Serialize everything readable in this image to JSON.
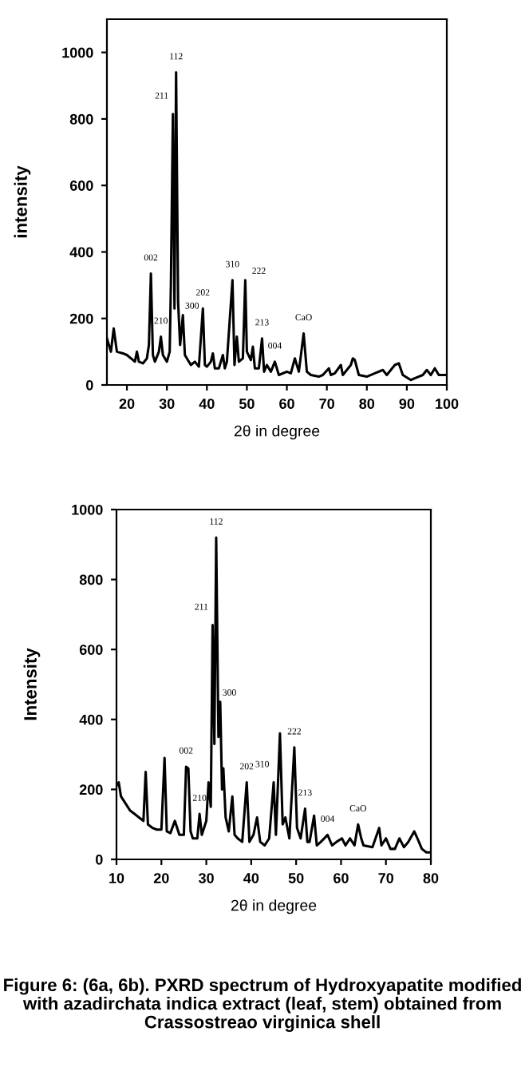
{
  "chart_data": [
    {
      "type": "line",
      "xlabel": "2θ in degree",
      "ylabel": "intensity",
      "xlim": [
        15,
        100
      ],
      "ylim": [
        0,
        1100
      ],
      "xticks": [
        20,
        30,
        40,
        50,
        60,
        70,
        80,
        90,
        100
      ],
      "yticks": [
        0,
        200,
        400,
        600,
        800,
        1000
      ],
      "grid": false,
      "legend": false,
      "marker": "none",
      "line_style": "solid",
      "series": [
        {
          "color": "#000000",
          "x": [
            15,
            16,
            16.7,
            17.5,
            19,
            20,
            21,
            22,
            22.5,
            23,
            24,
            25,
            25.5,
            26,
            26.5,
            27,
            28,
            28.5,
            29,
            30,
            30.7,
            31,
            31.5,
            31.9,
            32.3,
            32.8,
            33.3,
            34,
            34.5,
            35,
            36,
            37,
            38,
            39,
            39.5,
            40,
            41,
            41.5,
            42,
            43,
            44,
            44.5,
            45,
            46.4,
            46.9,
            47.5,
            48,
            49,
            49.6,
            50,
            51,
            51.5,
            52,
            53,
            53.8,
            54.3,
            55,
            56,
            57,
            58,
            60,
            61,
            62,
            63,
            64.2,
            65,
            66,
            68,
            69,
            70.5,
            71,
            72,
            73.5,
            74,
            75,
            76,
            76.5,
            77,
            78,
            80,
            82,
            84,
            85,
            87,
            88,
            89,
            91,
            92,
            94,
            95,
            96,
            97,
            98,
            100
          ],
          "values": [
            140,
            100,
            170,
            100,
            95,
            90,
            80,
            70,
            100,
            70,
            65,
            80,
            120,
            335,
            90,
            70,
            100,
            145,
            90,
            70,
            100,
            300,
            815,
            230,
            940,
            250,
            120,
            210,
            90,
            80,
            60,
            70,
            55,
            230,
            60,
            55,
            70,
            95,
            50,
            50,
            90,
            50,
            70,
            315,
            60,
            145,
            70,
            80,
            315,
            100,
            75,
            115,
            50,
            50,
            140,
            40,
            60,
            40,
            70,
            30,
            40,
            35,
            80,
            40,
            155,
            40,
            30,
            25,
            30,
            50,
            30,
            35,
            60,
            30,
            45,
            60,
            80,
            75,
            30,
            25,
            35,
            45,
            30,
            60,
            65,
            30,
            15,
            20,
            30,
            45,
            30,
            50,
            30,
            30
          ]
        }
      ],
      "annotations": [
        {
          "text": "002",
          "x": 26,
          "y": 335
        },
        {
          "text": "210",
          "x": 28.5,
          "y": 145
        },
        {
          "text": "211",
          "x": 31.5,
          "y": 815
        },
        {
          "text": "112",
          "x": 32.3,
          "y": 940
        },
        {
          "text": "300",
          "x": 34,
          "y": 210
        },
        {
          "text": "202",
          "x": 39,
          "y": 230
        },
        {
          "text": "310",
          "x": 46.4,
          "y": 315
        },
        {
          "text": "222",
          "x": 49.6,
          "y": 315
        },
        {
          "text": "213",
          "x": 53.8,
          "y": 140
        },
        {
          "text": "004",
          "x": 57,
          "y": 70
        },
        {
          "text": "CaO",
          "x": 64.2,
          "y": 155
        }
      ]
    },
    {
      "type": "line",
      "xlabel": "2θ in degree",
      "ylabel": "Intensity",
      "xlim": [
        10,
        80
      ],
      "ylim": [
        0,
        1000
      ],
      "xticks": [
        10,
        20,
        30,
        40,
        50,
        60,
        70,
        80
      ],
      "yticks": [
        0,
        200,
        400,
        600,
        800,
        1000
      ],
      "grid": false,
      "legend": false,
      "marker": "none",
      "line_style": "solid",
      "series": [
        {
          "color": "#000000",
          "x": [
            10,
            10.5,
            11,
            12,
            13,
            14,
            15,
            16,
            16.5,
            17,
            18,
            19,
            20,
            20.7,
            21.2,
            22,
            23,
            24,
            25,
            25.5,
            26,
            26.5,
            27,
            28,
            28.5,
            29,
            30,
            30.5,
            31,
            31.4,
            31.8,
            32.2,
            32.7,
            33.1,
            33.5,
            33.8,
            34.3,
            35,
            35.8,
            36.3,
            37,
            38,
            39,
            39.6,
            40.5,
            41.3,
            42,
            43,
            44,
            45,
            45.5,
            46.4,
            47,
            47.6,
            48.5,
            49.6,
            50.2,
            51,
            52,
            52.5,
            53,
            54,
            54.6,
            55.5,
            57,
            58,
            59,
            60.2,
            61,
            62,
            63,
            63.8,
            64.5,
            65,
            67,
            68.5,
            69,
            70,
            71,
            72,
            73,
            74,
            75,
            76.3,
            77,
            78,
            79,
            80
          ],
          "values": [
            210,
            220,
            180,
            160,
            140,
            130,
            120,
            110,
            250,
            100,
            90,
            85,
            85,
            290,
            80,
            75,
            110,
            70,
            70,
            265,
            260,
            80,
            60,
            60,
            130,
            70,
            110,
            220,
            150,
            670,
            330,
            920,
            350,
            450,
            200,
            260,
            120,
            80,
            180,
            70,
            60,
            50,
            220,
            50,
            70,
            120,
            50,
            40,
            60,
            220,
            70,
            360,
            100,
            120,
            60,
            320,
            90,
            60,
            145,
            50,
            50,
            125,
            40,
            50,
            70,
            40,
            50,
            60,
            40,
            60,
            40,
            100,
            60,
            40,
            35,
            90,
            40,
            60,
            30,
            30,
            60,
            35,
            50,
            80,
            60,
            30,
            20,
            20
          ]
        }
      ],
      "annotations": [
        {
          "text": "112",
          "x": 32.2,
          "y": 920
        },
        {
          "text": "211",
          "x": 31.4,
          "y": 670
        },
        {
          "text": "300",
          "x": 33.1,
          "y": 450
        },
        {
          "text": "002",
          "x": 25.5,
          "y": 265
        },
        {
          "text": "210",
          "x": 28.5,
          "y": 130
        },
        {
          "text": "202",
          "x": 39,
          "y": 220
        },
        {
          "text": "310",
          "x": 45,
          "y": 220
        },
        {
          "text": "222",
          "x": 49.6,
          "y": 320
        },
        {
          "text": "213",
          "x": 52,
          "y": 145
        },
        {
          "text": "004",
          "x": 57,
          "y": 70
        },
        {
          "text": "CaO",
          "x": 63.8,
          "y": 100
        },
        "Figure 6: (6a, 6b). PXRD spectrum of Hydroxyapatite modified with azadirchata indica extract (leaf, stem) obtained from Crassostreao virginica shell"
      ]
    }
  ]
}
